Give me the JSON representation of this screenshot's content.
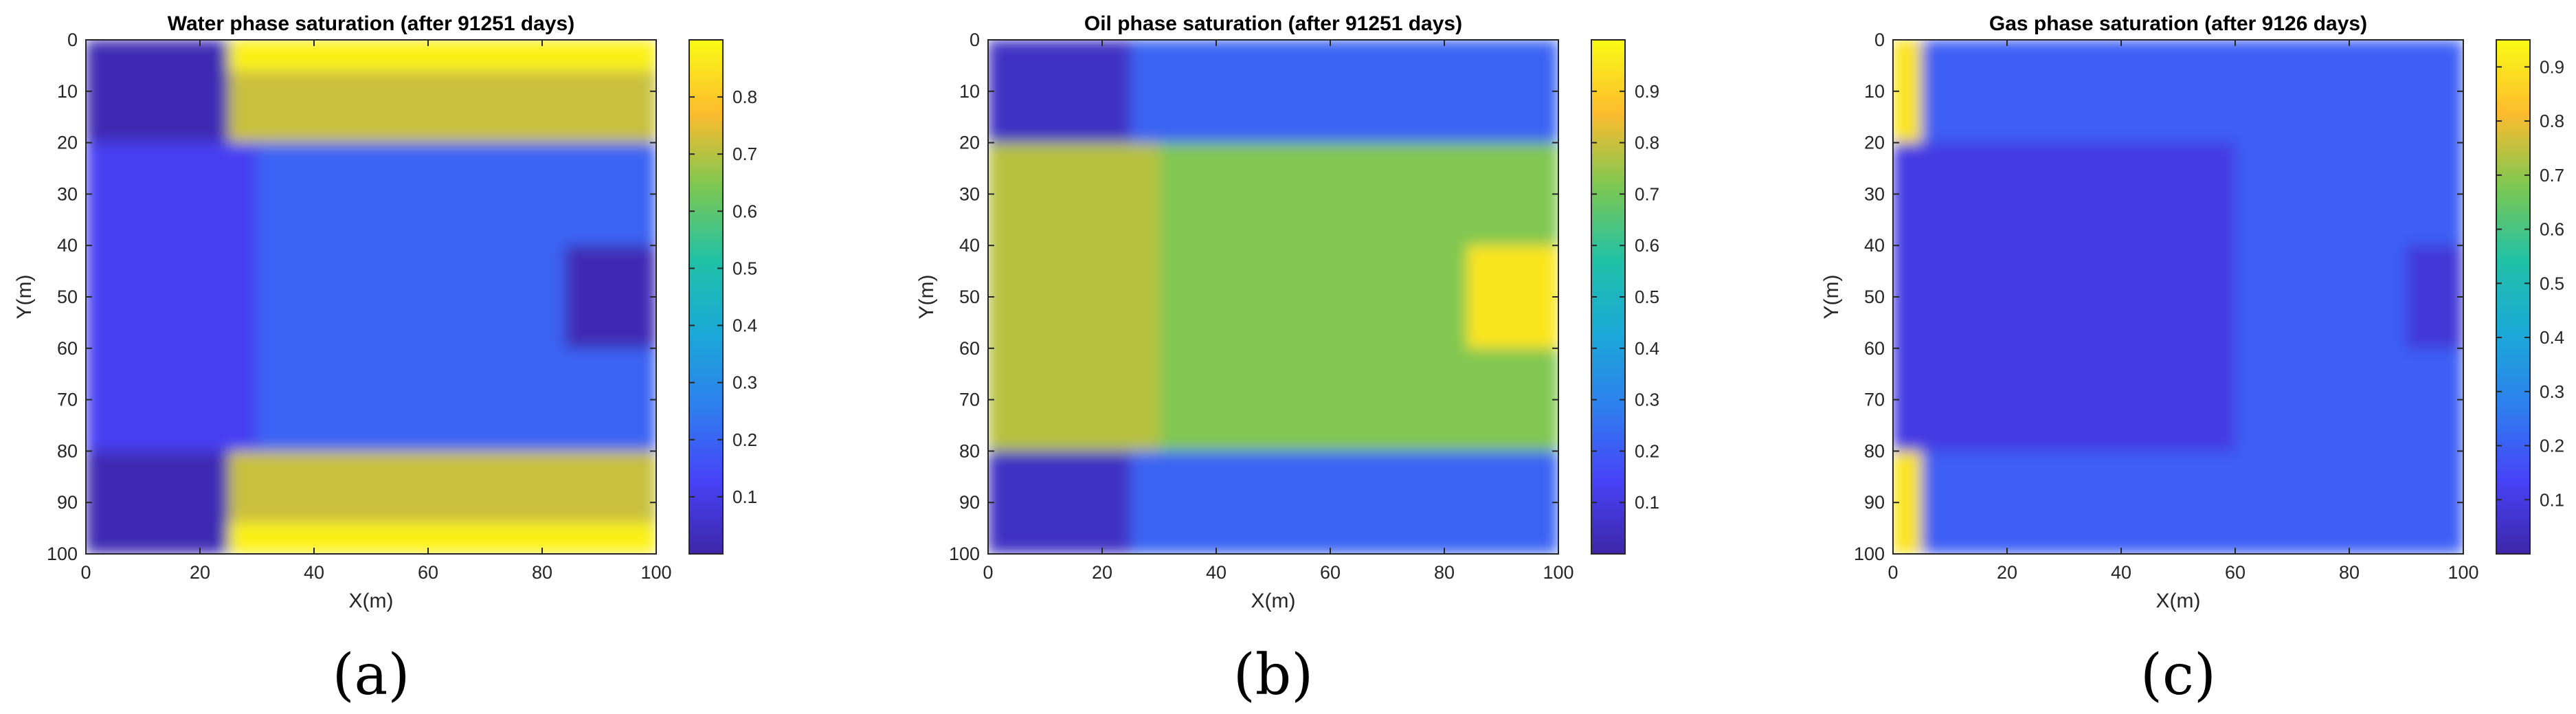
{
  "chart_data": [
    {
      "type": "heatmap",
      "title": "Water phase saturation (after 91251 days)",
      "xlabel": "X(m)",
      "ylabel": "Y(m)",
      "caption": "(a)",
      "xlim": [
        0,
        100
      ],
      "ylim": [
        100,
        0
      ],
      "x_ticks": [
        "0",
        "20",
        "40",
        "60",
        "80",
        "100"
      ],
      "y_ticks": [
        "0",
        "10",
        "20",
        "30",
        "40",
        "50",
        "60",
        "70",
        "80",
        "90",
        "100"
      ],
      "colorbar": {
        "range": [
          0.0,
          0.9
        ],
        "ticks": [
          "0.1",
          "0.2",
          "0.3",
          "0.4",
          "0.5",
          "0.6",
          "0.7",
          "0.8"
        ]
      },
      "colormap": [
        "#3e26a8",
        "#4743f8",
        "#2f7fef",
        "#1aa9d8",
        "#21c1a6",
        "#7cc752",
        "#fdbb2e",
        "#f9fb15"
      ],
      "regions": [
        {
          "x": [
            0,
            25
          ],
          "y": [
            0,
            20
          ],
          "value": 0.02
        },
        {
          "x": [
            0,
            25
          ],
          "y": [
            80,
            100
          ],
          "value": 0.02
        },
        {
          "x": [
            25,
            100
          ],
          "y": [
            0,
            6
          ],
          "value": 0.88
        },
        {
          "x": [
            25,
            100
          ],
          "y": [
            94,
            100
          ],
          "value": 0.88
        },
        {
          "x": [
            25,
            100
          ],
          "y": [
            6,
            20
          ],
          "value": 0.72
        },
        {
          "x": [
            25,
            100
          ],
          "y": [
            80,
            94
          ],
          "value": 0.72
        },
        {
          "x": [
            0,
            30
          ],
          "y": [
            20,
            80
          ],
          "value": 0.12
        },
        {
          "x": [
            30,
            100
          ],
          "y": [
            20,
            80
          ],
          "value": 0.2
        },
        {
          "x": [
            84,
            100
          ],
          "y": [
            40,
            60
          ],
          "value": 0.02
        }
      ]
    },
    {
      "type": "heatmap",
      "title": "Oil phase saturation (after 91251 days)",
      "xlabel": "X(m)",
      "ylabel": "Y(m)",
      "caption": "(b)",
      "xlim": [
        0,
        100
      ],
      "ylim": [
        100,
        0
      ],
      "x_ticks": [
        "0",
        "20",
        "40",
        "60",
        "80",
        "100"
      ],
      "y_ticks": [
        "0",
        "10",
        "20",
        "30",
        "40",
        "50",
        "60",
        "70",
        "80",
        "90",
        "100"
      ],
      "colorbar": {
        "range": [
          0.0,
          1.0
        ],
        "ticks": [
          "0.1",
          "0.2",
          "0.3",
          "0.4",
          "0.5",
          "0.6",
          "0.7",
          "0.8",
          "0.9"
        ]
      },
      "colormap": [
        "#3e26a8",
        "#4743f8",
        "#2f7fef",
        "#1aa9d8",
        "#21c1a6",
        "#7cc752",
        "#fdbb2e",
        "#f9fb15"
      ],
      "regions": [
        {
          "x": [
            0,
            25
          ],
          "y": [
            0,
            20
          ],
          "value": 0.05
        },
        {
          "x": [
            0,
            25
          ],
          "y": [
            80,
            100
          ],
          "value": 0.05
        },
        {
          "x": [
            25,
            100
          ],
          "y": [
            0,
            20
          ],
          "value": 0.22
        },
        {
          "x": [
            25,
            100
          ],
          "y": [
            80,
            100
          ],
          "value": 0.22
        },
        {
          "x": [
            0,
            30
          ],
          "y": [
            20,
            80
          ],
          "value": 0.78
        },
        {
          "x": [
            30,
            100
          ],
          "y": [
            20,
            80
          ],
          "value": 0.72
        },
        {
          "x": [
            84,
            100
          ],
          "y": [
            40,
            60
          ],
          "value": 0.95
        }
      ]
    },
    {
      "type": "heatmap",
      "title": "Gas phase saturation (after 9126 days)",
      "xlabel": "X(m)",
      "ylabel": "Y(m)",
      "caption": "(c)",
      "xlim": [
        0,
        100
      ],
      "ylim": [
        100,
        0
      ],
      "x_ticks": [
        "0",
        "20",
        "40",
        "60",
        "80",
        "100"
      ],
      "y_ticks": [
        "0",
        "10",
        "20",
        "30",
        "40",
        "50",
        "60",
        "70",
        "80",
        "90",
        "100"
      ],
      "colorbar": {
        "range": [
          0.0,
          0.95
        ],
        "ticks": [
          "0.1",
          "0.2",
          "0.3",
          "0.4",
          "0.5",
          "0.6",
          "0.7",
          "0.8",
          "0.9"
        ]
      },
      "colormap": [
        "#3e26a8",
        "#4743f8",
        "#2f7fef",
        "#1aa9d8",
        "#21c1a6",
        "#7cc752",
        "#fdbb2e",
        "#f9fb15"
      ],
      "regions": [
        {
          "x": [
            0,
            100
          ],
          "y": [
            0,
            100
          ],
          "value": 0.2
        },
        {
          "x": [
            0,
            60
          ],
          "y": [
            20,
            80
          ],
          "value": 0.1
        },
        {
          "x": [
            90,
            100
          ],
          "y": [
            40,
            60
          ],
          "value": 0.08
        },
        {
          "x": [
            0,
            5
          ],
          "y": [
            0,
            20
          ],
          "value": 0.9
        },
        {
          "x": [
            0,
            5
          ],
          "y": [
            80,
            100
          ],
          "value": 0.9
        }
      ]
    }
  ]
}
